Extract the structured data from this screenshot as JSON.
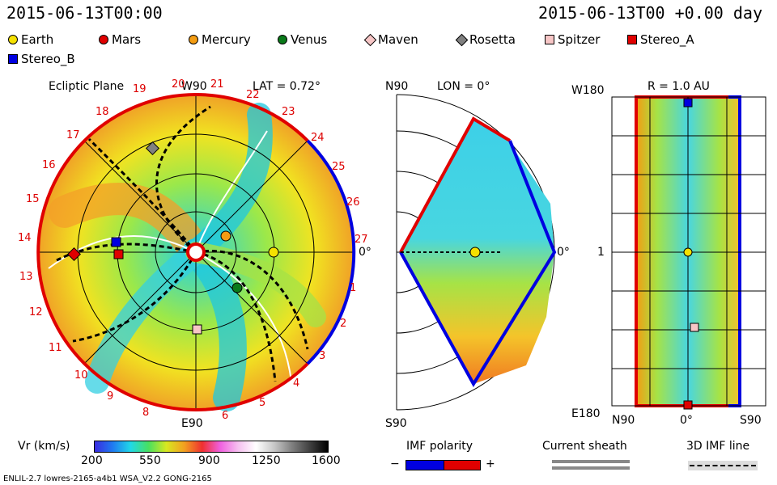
{
  "header": {
    "left_time": "2015-06-13T00:00",
    "right_time": "2015-06-13T00 +0.00 day"
  },
  "legend": [
    {
      "label": "Earth",
      "shape": "circle",
      "color": "#f5e100"
    },
    {
      "label": "Mars",
      "shape": "circle",
      "color": "#e00000"
    },
    {
      "label": "Mercury",
      "shape": "circle",
      "color": "#f39c12"
    },
    {
      "label": "Venus",
      "shape": "circle",
      "color": "#0a7a1a"
    },
    {
      "label": "Maven",
      "shape": "diamond",
      "color": "#f7c6c6"
    },
    {
      "label": "Rosetta",
      "shape": "diamond",
      "color": "#808080"
    },
    {
      "label": "Spitzer",
      "shape": "square",
      "color": "#f7c6c6"
    },
    {
      "label": "Stereo_A",
      "shape": "square",
      "color": "#e00000"
    },
    {
      "label": "Stereo_B",
      "shape": "square",
      "color": "#0000e0"
    }
  ],
  "ecliptic": {
    "title": "Ecliptic Plane",
    "lat": "LAT = 0.72°",
    "top_label": "W90",
    "bottom_label": "E90",
    "right_label": "0°",
    "red_numbers": [
      "19",
      "20",
      "21",
      "22",
      "23",
      "24",
      "25",
      "26",
      "27",
      "18",
      "17",
      "16",
      "15",
      "14",
      "13",
      "12",
      "11",
      "10",
      "9",
      "8",
      "6",
      "5",
      "4",
      "3",
      "2",
      "1"
    ]
  },
  "meridional": {
    "top_label": "N90",
    "lon": "LON = 0°",
    "bottom_label": "S90",
    "right_label": "0°"
  },
  "radial": {
    "title": "R = 1.0 AU",
    "top_left": "W180",
    "bottom_left": "E180",
    "mid_left": "1",
    "bottom_axis": [
      "N90",
      "0°",
      "S90"
    ]
  },
  "colorbar": {
    "title": "Vr (km/s)",
    "ticks": [
      "200",
      "550",
      "900",
      "1250",
      "1600"
    ]
  },
  "imf": {
    "title": "IMF polarity",
    "minus": "−",
    "plus": "+"
  },
  "sheath": {
    "title": "Current sheath"
  },
  "imf3d": {
    "title": "3D IMF line"
  },
  "footer": {
    "left": "ENLIL-2.7 lowres-2165-a4b1 WSA_V2.2 GONG-2165"
  },
  "colors": {
    "imf_negative": "#0000e0",
    "imf_positive": "#e00000"
  }
}
